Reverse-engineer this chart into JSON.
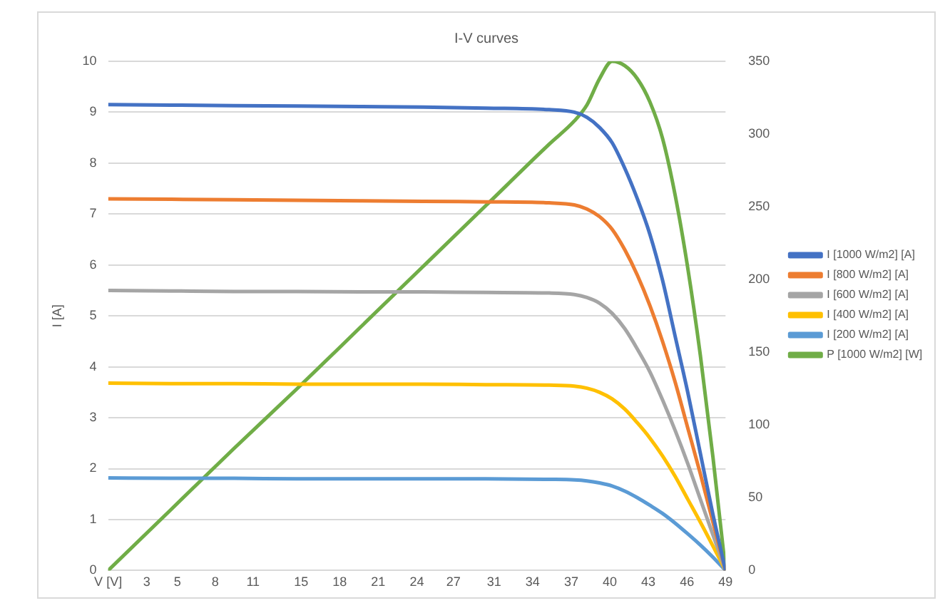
{
  "chart_data": {
    "type": "line",
    "title": "I-V curves",
    "ylabel": "I [A]",
    "x": [
      0,
      5,
      10,
      15,
      20,
      25,
      30,
      35,
      37,
      38,
      39,
      40,
      41,
      42,
      43,
      44,
      45,
      46,
      47,
      48,
      49
    ],
    "xlim": [
      0,
      49
    ],
    "xticks": [
      {
        "value": 0,
        "label": "V [V]"
      },
      {
        "value": 3.0625,
        "label": "3"
      },
      {
        "value": 5.5,
        "label": "5"
      },
      {
        "value": 8.5,
        "label": "8"
      },
      {
        "value": 11.5,
        "label": "11"
      },
      {
        "value": 15.3125,
        "label": "15"
      },
      {
        "value": 18.375,
        "label": "18"
      },
      {
        "value": 21.4375,
        "label": "21"
      },
      {
        "value": 24.5,
        "label": "24"
      },
      {
        "value": 27.4,
        "label": "27"
      },
      {
        "value": 30.625,
        "label": "31"
      },
      {
        "value": 33.6875,
        "label": "34"
      },
      {
        "value": 36.75,
        "label": "37"
      },
      {
        "value": 39.8125,
        "label": "40"
      },
      {
        "value": 42.875,
        "label": "43"
      },
      {
        "value": 45.9375,
        "label": "46"
      },
      {
        "value": 49,
        "label": "49"
      }
    ],
    "ylim": [
      0,
      10
    ],
    "yticks": [
      0,
      1,
      2,
      3,
      4,
      5,
      6,
      7,
      8,
      9,
      10
    ],
    "y2lim": [
      0,
      350
    ],
    "y2ticks": [
      0,
      50,
      100,
      150,
      200,
      250,
      300,
      350
    ],
    "grid": "y",
    "legend": "right",
    "marker": "none",
    "line_style": "solid",
    "series": [
      {
        "name": "I [1000 W/m2] [A]",
        "color": "#4472c4",
        "values": [
          9.15,
          9.14,
          9.13,
          9.12,
          9.11,
          9.1,
          9.08,
          9.05,
          9.0,
          8.9,
          8.7,
          8.4,
          7.9,
          7.3,
          6.6,
          5.7,
          4.6,
          3.5,
          2.3,
          1.1,
          0
        ]
      },
      {
        "name": "I [800 W/m2] [A]",
        "color": "#ed7d31",
        "values": [
          7.3,
          7.29,
          7.28,
          7.27,
          7.26,
          7.25,
          7.24,
          7.22,
          7.18,
          7.1,
          6.95,
          6.7,
          6.3,
          5.8,
          5.2,
          4.5,
          3.7,
          2.8,
          1.9,
          0.95,
          0
        ]
      },
      {
        "name": "I [600 W/m2] [A]",
        "color": "#a5a5a5",
        "values": [
          5.5,
          5.49,
          5.48,
          5.48,
          5.47,
          5.47,
          5.46,
          5.45,
          5.42,
          5.36,
          5.25,
          5.05,
          4.75,
          4.35,
          3.9,
          3.35,
          2.75,
          2.1,
          1.4,
          0.7,
          0
        ]
      },
      {
        "name": "I [400 W/m2] [A]",
        "color": "#ffc000",
        "values": [
          3.68,
          3.67,
          3.67,
          3.66,
          3.66,
          3.66,
          3.65,
          3.64,
          3.62,
          3.58,
          3.5,
          3.37,
          3.17,
          2.9,
          2.6,
          2.25,
          1.85,
          1.4,
          0.95,
          0.48,
          0
        ]
      },
      {
        "name": "I [200 W/m2] [A]",
        "color": "#5b9bd5",
        "values": [
          1.82,
          1.81,
          1.81,
          1.8,
          1.8,
          1.8,
          1.8,
          1.79,
          1.78,
          1.76,
          1.72,
          1.66,
          1.56,
          1.43,
          1.28,
          1.12,
          0.93,
          0.72,
          0.5,
          0.26,
          0
        ]
      },
      {
        "name": "P [1000 W/m2] [W]",
        "color": "#70ad47",
        "axis": "y2",
        "values": [
          0,
          42,
          84,
          125,
          167,
          209,
          251,
          293,
          309,
          320,
          338,
          350,
          347,
          338,
          322,
          297,
          258,
          208,
          148,
          78,
          0
        ]
      }
    ]
  }
}
